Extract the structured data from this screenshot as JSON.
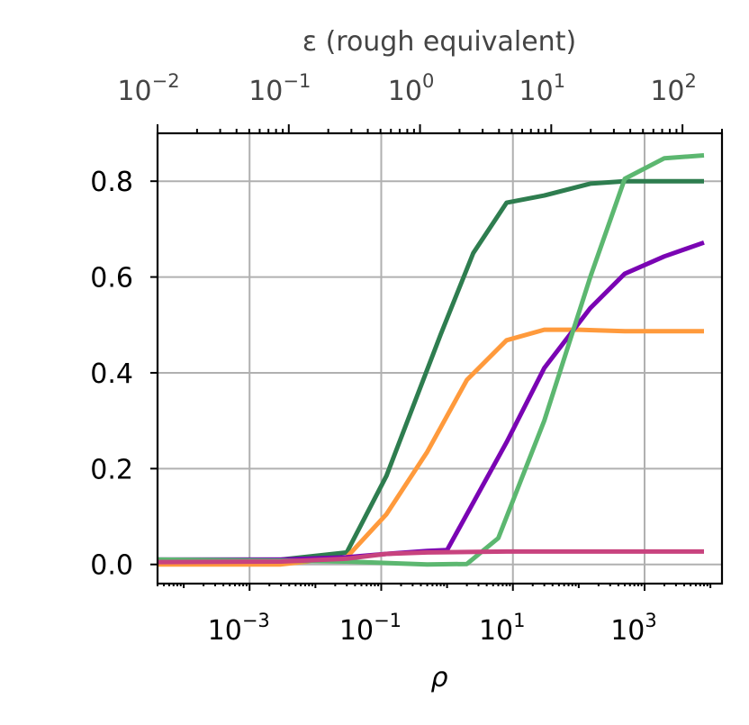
{
  "chart_data": {
    "type": "line",
    "xlabel": "ρ",
    "x2label": "ε (rough equivalent)",
    "ylabel": "",
    "xscale": "log",
    "x2scale": "log",
    "xlim": [
      4e-05,
      15000
    ],
    "x2lim": [
      0.01,
      200
    ],
    "ylim": [
      -0.04,
      0.9
    ],
    "grid": true,
    "legend": "none",
    "x_ticks": [
      {
        "base": "10",
        "exp": "−3",
        "value": 0.001
      },
      {
        "base": "10",
        "exp": "−1",
        "value": 0.1
      },
      {
        "base": "10",
        "exp": "1",
        "value": 10
      },
      {
        "base": "10",
        "exp": "3",
        "value": 1000
      }
    ],
    "x2_ticks": [
      {
        "base": "10",
        "exp": "−2",
        "value": 0.01
      },
      {
        "base": "10",
        "exp": "−1",
        "value": 0.1
      },
      {
        "base": "10",
        "exp": "0",
        "value": 1
      },
      {
        "base": "10",
        "exp": "1",
        "value": 10
      },
      {
        "base": "10",
        "exp": "2",
        "value": 100
      }
    ],
    "y_ticks": [
      {
        "label": "0.0",
        "value": 0.0
      },
      {
        "label": "0.2",
        "value": 0.2
      },
      {
        "label": "0.4",
        "value": 0.4
      },
      {
        "label": "0.6",
        "value": 0.6
      },
      {
        "label": "0.8",
        "value": 0.8
      }
    ],
    "series": [
      {
        "color": "#2e7d4f",
        "x": [
          4e-05,
          0.003,
          0.03,
          0.12,
          0.8,
          2.5,
          8,
          30,
          150,
          500,
          2000,
          8000
        ],
        "y": [
          0.01,
          0.01,
          0.025,
          0.185,
          0.48,
          0.65,
          0.755,
          0.77,
          0.795,
          0.8,
          0.8,
          0.8
        ]
      },
      {
        "color": "#ff9a3c",
        "x": [
          4e-05,
          0.003,
          0.03,
          0.12,
          0.5,
          2.0,
          8,
          30,
          100,
          500,
          2000,
          8000
        ],
        "y": [
          0.0,
          0.0,
          0.015,
          0.105,
          0.235,
          0.385,
          0.468,
          0.49,
          0.49,
          0.487,
          0.487,
          0.487
        ]
      },
      {
        "color": "#7a04b3",
        "x": [
          4e-05,
          0.003,
          0.03,
          0.12,
          0.5,
          1.0,
          8,
          30,
          150,
          500,
          2000,
          8000
        ],
        "y": [
          0.01,
          0.01,
          0.015,
          0.022,
          0.028,
          0.03,
          0.255,
          0.41,
          0.535,
          0.607,
          0.643,
          0.672
        ]
      },
      {
        "color": "#5cb770",
        "x": [
          4e-05,
          0.003,
          0.03,
          0.12,
          0.5,
          2.0,
          6,
          30,
          150,
          500,
          2000,
          8000
        ],
        "y": [
          0.01,
          0.008,
          0.006,
          0.003,
          0.0,
          0.001,
          0.055,
          0.3,
          0.6,
          0.805,
          0.848,
          0.854
        ]
      },
      {
        "color": "#c8437e",
        "x": [
          4e-05,
          0.003,
          0.03,
          0.12,
          0.5,
          2.0,
          8,
          30,
          150,
          500,
          2000,
          8000
        ],
        "y": [
          0.005,
          0.006,
          0.012,
          0.022,
          0.025,
          0.026,
          0.027,
          0.027,
          0.027,
          0.027,
          0.027,
          0.027
        ]
      }
    ]
  }
}
